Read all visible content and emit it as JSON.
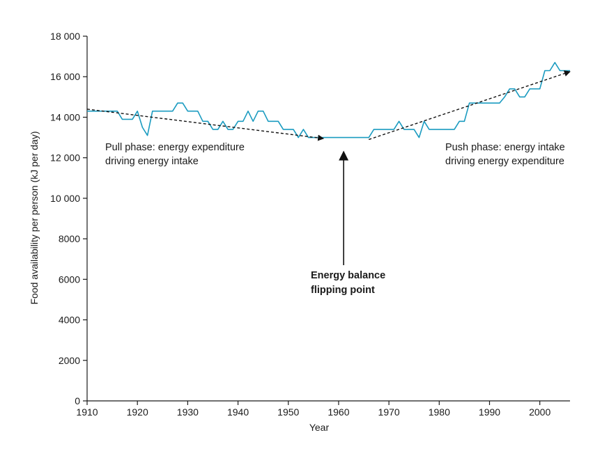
{
  "chart_data": {
    "type": "line",
    "title": "",
    "xlabel": "Year",
    "ylabel": "Food availability per person (kJ per day)",
    "xlim": [
      1910,
      2006
    ],
    "ylim": [
      0,
      18000
    ],
    "x_ticks": [
      1910,
      1920,
      1930,
      1940,
      1950,
      1960,
      1970,
      1980,
      1990,
      2000
    ],
    "x_tick_labels": [
      "1910",
      "1920",
      "1930",
      "1940",
      "1950",
      "1960",
      "1970",
      "1980",
      "1990",
      "2000"
    ],
    "y_ticks": [
      0,
      2000,
      4000,
      6000,
      8000,
      10000,
      12000,
      14000,
      16000,
      18000
    ],
    "y_tick_labels": [
      "0",
      "2000",
      "4000",
      "6000",
      "8000",
      "10 000",
      "12 000",
      "14 000",
      "16 000",
      "18 000"
    ],
    "grid": false,
    "series": [
      {
        "name": "Food availability",
        "color": "#1a9bc0",
        "style": "step",
        "x": [
          1910,
          1911,
          1912,
          1913,
          1914,
          1915,
          1916,
          1917,
          1918,
          1919,
          1920,
          1921,
          1922,
          1923,
          1924,
          1925,
          1926,
          1927,
          1928,
          1929,
          1930,
          1931,
          1932,
          1933,
          1934,
          1935,
          1936,
          1937,
          1938,
          1939,
          1940,
          1941,
          1942,
          1943,
          1944,
          1945,
          1946,
          1947,
          1948,
          1949,
          1950,
          1951,
          1952,
          1953,
          1954,
          1955,
          1956,
          1957,
          1958,
          1959,
          1960,
          1961,
          1962,
          1963,
          1964,
          1965,
          1966,
          1967,
          1968,
          1969,
          1970,
          1971,
          1972,
          1973,
          1974,
          1975,
          1976,
          1977,
          1978,
          1979,
          1980,
          1981,
          1982,
          1983,
          1984,
          1985,
          1986,
          1987,
          1988,
          1989,
          1990,
          1991,
          1992,
          1993,
          1994,
          1995,
          1996,
          1997,
          1998,
          1999,
          2000,
          2001,
          2002,
          2003,
          2004,
          2005,
          2006
        ],
        "y": [
          14300,
          14300,
          14300,
          14300,
          14300,
          14300,
          14300,
          13900,
          13900,
          13900,
          14300,
          13500,
          13100,
          14300,
          14300,
          14300,
          14300,
          14300,
          14700,
          14700,
          14300,
          14300,
          14300,
          13800,
          13800,
          13400,
          13400,
          13800,
          13400,
          13400,
          13800,
          13800,
          14300,
          13800,
          14300,
          14300,
          13800,
          13800,
          13800,
          13400,
          13400,
          13400,
          13000,
          13400,
          13000,
          13000,
          13000,
          13000,
          13000,
          13000,
          13000,
          13000,
          13000,
          13000,
          13000,
          13000,
          13000,
          13400,
          13400,
          13400,
          13400,
          13400,
          13800,
          13400,
          13400,
          13400,
          13000,
          13800,
          13400,
          13400,
          13400,
          13400,
          13400,
          13400,
          13800,
          13800,
          14700,
          14700,
          14700,
          14700,
          14700,
          14700,
          14700,
          15000,
          15400,
          15400,
          15000,
          15000,
          15400,
          15400,
          15400,
          16300,
          16300,
          16700,
          16300,
          16300,
          16300
        ]
      }
    ],
    "trend_lines": [
      {
        "name": "Pull phase trend",
        "from": [
          1910,
          14400
        ],
        "to": [
          1957,
          12950
        ],
        "style": "dashed",
        "arrow": true
      },
      {
        "name": "Push phase trend",
        "from": [
          1966,
          12900
        ],
        "to": [
          2006,
          16250
        ],
        "style": "dashed",
        "arrow": true
      }
    ],
    "flip_arrow": {
      "x": 1961,
      "from_y": 6700,
      "to_y": 12300
    },
    "annotations": {
      "pull_phase": [
        "Pull phase: energy expenditure",
        "driving energy intake"
      ],
      "push_phase": [
        "Push phase: energy intake",
        "driving energy expenditure"
      ],
      "flipping_point": [
        "Energy balance",
        "flipping point"
      ]
    }
  }
}
